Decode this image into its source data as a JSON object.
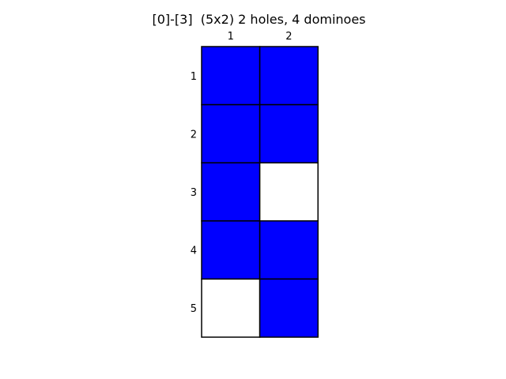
{
  "title": "[0]-[3]  (5x2) 2 holes, 4 dominoes",
  "board": {
    "column_labels": [
      "1",
      "2"
    ],
    "row_labels": [
      "1",
      "2",
      "3",
      "4",
      "5"
    ],
    "cells": [
      [
        "filled",
        "filled"
      ],
      [
        "filled",
        "filled"
      ],
      [
        "filled",
        "hole"
      ],
      [
        "filled",
        "filled"
      ],
      [
        "hole",
        "filled"
      ]
    ]
  },
  "colors": {
    "filled": "#0000ff",
    "hole": "#ffffff",
    "border": "#000000"
  }
}
